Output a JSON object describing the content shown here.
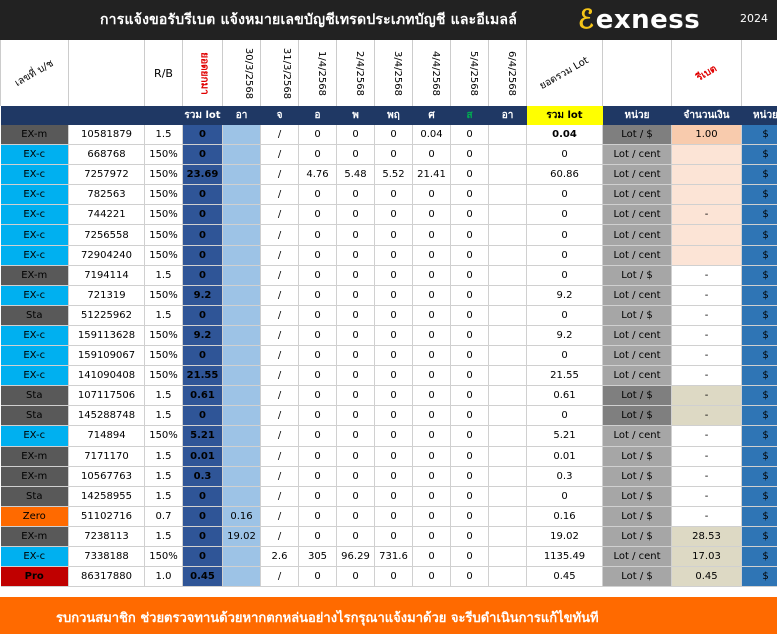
{
  "banner": {
    "title": "การแจ้งขอรับรีเบต  แจ้งหมายเลขบัญชีเทรดประเภทบัญชี และอีเมลล์",
    "brand": "exness",
    "year": "2024"
  },
  "header_top": [
    "เลขที่ บ/ช",
    "",
    "R/B",
    "ยอดยกมา",
    "30/3/2568",
    "31/3/2568",
    "1/4/2568",
    "2/4/2568",
    "3/4/2568",
    "4/4/2568",
    "5/4/2568",
    "6/4/2568",
    "ยอดรวม Lot",
    "",
    "รีเบต",
    ""
  ],
  "header_sub": [
    "",
    "",
    "",
    "รวม lot",
    "อา",
    "จ",
    "อ",
    "พ",
    "พฤ",
    "ศ",
    "ส",
    "อา",
    "รวม lot",
    "หน่วย",
    "จำนวนเงิน",
    "หน่วย"
  ],
  "rows": [
    {
      "type": "EX-m",
      "tc": "t-EXm",
      "acct": "10581879",
      "ac": "acct-black",
      "rb": "1.5",
      "carry": "0",
      "sun1": "",
      "mon": "/",
      "tue": "0",
      "wed": "0",
      "thu": "0",
      "fri": "0.04",
      "sat": "0",
      "sun2": "",
      "lot": "0.04",
      "lotb": true,
      "unit": "Lot / $",
      "uc": "unit-dk",
      "amt": "1.00",
      "amc": "amt-pink",
      "cur": "$"
    },
    {
      "type": "EX-c",
      "tc": "t-EXc",
      "acct": "668768",
      "ac": "acct-blue",
      "rb": "150%",
      "carry": "0",
      "sun1": "",
      "mon": "/",
      "tue": "0",
      "wed": "0",
      "thu": "0",
      "fri": "0",
      "sat": "0",
      "sun2": "",
      "lot": "0",
      "lotb": false,
      "unit": "Lot / cent",
      "uc": "unit-lt",
      "amt": "",
      "amc": "amt-peach",
      "cur": "$"
    },
    {
      "type": "EX-c",
      "tc": "t-EXc",
      "acct": "7257972",
      "ac": "acct-blue",
      "rb": "150%",
      "carry": "23.69",
      "sun1": "",
      "mon": "/",
      "tue": "4.76",
      "wed": "5.48",
      "thu": "5.52",
      "fri": "21.41",
      "sat": "0",
      "sun2": "",
      "lot": "60.86",
      "lotb": false,
      "unit": "Lot / cent",
      "uc": "unit-lt",
      "amt": "",
      "amc": "amt-peach",
      "cur": "$"
    },
    {
      "type": "EX-c",
      "tc": "t-EXc",
      "acct": "782563",
      "ac": "acct-blue",
      "rb": "150%",
      "carry": "0",
      "sun1": "",
      "mon": "/",
      "tue": "0",
      "wed": "0",
      "thu": "0",
      "fri": "0",
      "sat": "0",
      "sun2": "",
      "lot": "0",
      "lotb": false,
      "unit": "Lot / cent",
      "uc": "unit-lt",
      "amt": "",
      "amc": "amt-peach",
      "cur": "$"
    },
    {
      "type": "EX-c",
      "tc": "t-EXc",
      "acct": "744221",
      "ac": "acct-blue",
      "rb": "150%",
      "carry": "0",
      "sun1": "",
      "mon": "/",
      "tue": "0",
      "wed": "0",
      "thu": "0",
      "fri": "0",
      "sat": "0",
      "sun2": "",
      "lot": "0",
      "lotb": false,
      "unit": "Lot / cent",
      "uc": "unit-lt",
      "amt": "-",
      "amc": "amt-peach",
      "cur": "$"
    },
    {
      "type": "EX-c",
      "tc": "t-EXc",
      "acct": "7256558",
      "ac": "acct-blue",
      "rb": "150%",
      "carry": "0",
      "sun1": "",
      "mon": "/",
      "tue": "0",
      "wed": "0",
      "thu": "0",
      "fri": "0",
      "sat": "0",
      "sun2": "",
      "lot": "0",
      "lotb": false,
      "unit": "Lot / cent",
      "uc": "unit-lt",
      "amt": "",
      "amc": "amt-peach",
      "cur": "$"
    },
    {
      "type": "EX-c",
      "tc": "t-EXc",
      "acct": "72904240",
      "ac": "acct-blue",
      "rb": "150%",
      "carry": "0",
      "sun1": "",
      "mon": "/",
      "tue": "0",
      "wed": "0",
      "thu": "0",
      "fri": "0",
      "sat": "0",
      "sun2": "",
      "lot": "0",
      "lotb": false,
      "unit": "Lot / cent",
      "uc": "unit-lt",
      "amt": "",
      "amc": "amt-peach",
      "cur": "$"
    },
    {
      "type": "EX-m",
      "tc": "t-EXm",
      "acct": "7194114",
      "ac": "acct-black",
      "rb": "1.5",
      "carry": "0",
      "sun1": "",
      "mon": "/",
      "tue": "0",
      "wed": "0",
      "thu": "0",
      "fri": "0",
      "sat": "0",
      "sun2": "",
      "lot": "0",
      "lotb": false,
      "unit": "Lot / $",
      "uc": "unit-lt",
      "amt": "-",
      "amc": "",
      "cur": "$"
    },
    {
      "type": "EX-c",
      "tc": "t-EXc",
      "acct": "721319",
      "ac": "acct-black",
      "rb": "150%",
      "carry": "9.2",
      "sun1": "",
      "mon": "/",
      "tue": "0",
      "wed": "0",
      "thu": "0",
      "fri": "0",
      "sat": "0",
      "sun2": "",
      "lot": "9.2",
      "lotb": false,
      "unit": "Lot / cent",
      "uc": "unit-lt",
      "amt": "-",
      "amc": "",
      "cur": "$"
    },
    {
      "type": "Sta",
      "tc": "t-Sta",
      "acct": "51225962",
      "ac": "acct-orange",
      "rb": "1.5",
      "carry": "0",
      "sun1": "",
      "mon": "/",
      "tue": "0",
      "wed": "0",
      "thu": "0",
      "fri": "0",
      "sat": "0",
      "sun2": "",
      "lot": "0",
      "lotb": false,
      "unit": "Lot / $",
      "uc": "unit-lt",
      "amt": "-",
      "amc": "",
      "cur": "$"
    },
    {
      "type": "EX-c",
      "tc": "t-EXc",
      "acct": "159113628",
      "ac": "acct-orange",
      "rb": "150%",
      "carry": "9.2",
      "sun1": "",
      "mon": "/",
      "tue": "0",
      "wed": "0",
      "thu": "0",
      "fri": "0",
      "sat": "0",
      "sun2": "",
      "lot": "9.2",
      "lotb": false,
      "unit": "Lot / cent",
      "uc": "unit-lt",
      "amt": "-",
      "amc": "",
      "cur": "$"
    },
    {
      "type": "EX-c",
      "tc": "t-EXc",
      "acct": "159109067",
      "ac": "acct-orange",
      "rb": "150%",
      "carry": "0",
      "sun1": "",
      "mon": "/",
      "tue": "0",
      "wed": "0",
      "thu": "0",
      "fri": "0",
      "sat": "0",
      "sun2": "",
      "lot": "0",
      "lotb": false,
      "unit": "Lot / cent",
      "uc": "unit-lt",
      "amt": "-",
      "amc": "",
      "cur": "$"
    },
    {
      "type": "EX-c",
      "tc": "t-EXc",
      "acct": "141090408",
      "ac": "acct-orange",
      "rb": "150%",
      "carry": "21.55",
      "sun1": "",
      "mon": "/",
      "tue": "0",
      "wed": "0",
      "thu": "0",
      "fri": "0",
      "sat": "0",
      "sun2": "",
      "lot": "21.55",
      "lotb": false,
      "unit": "Lot / cent",
      "uc": "unit-lt",
      "amt": "-",
      "amc": "",
      "cur": "$"
    },
    {
      "type": "Sta",
      "tc": "t-Sta",
      "acct": "107117506",
      "ac": "acct-blue",
      "rb": "1.5",
      "carry": "0.61",
      "sun1": "",
      "mon": "/",
      "tue": "0",
      "wed": "0",
      "thu": "0",
      "fri": "0",
      "sat": "0",
      "sun2": "",
      "lot": "0.61",
      "lotb": false,
      "unit": "Lot / $",
      "uc": "unit-dk",
      "amt": "-",
      "amc": "amt-tan",
      "cur": "$"
    },
    {
      "type": "Sta",
      "tc": "t-Sta",
      "acct": "145288748",
      "ac": "acct-blue",
      "rb": "1.5",
      "carry": "0",
      "sun1": "",
      "mon": "/",
      "tue": "0",
      "wed": "0",
      "thu": "0",
      "fri": "0",
      "sat": "0",
      "sun2": "",
      "lot": "0",
      "lotb": false,
      "unit": "Lot / $",
      "uc": "unit-dk",
      "amt": "-",
      "amc": "amt-tan",
      "cur": "$"
    },
    {
      "type": "EX-c",
      "tc": "t-EXc",
      "acct": "714894",
      "ac": "acct-black",
      "rb": "150%",
      "carry": "5.21",
      "sun1": "",
      "mon": "/",
      "tue": "0",
      "wed": "0",
      "thu": "0",
      "fri": "0",
      "sat": "0",
      "sun2": "",
      "lot": "5.21",
      "lotb": false,
      "unit": "Lot / cent",
      "uc": "unit-lt",
      "amt": "-",
      "amc": "",
      "cur": "$"
    },
    {
      "type": "EX-m",
      "tc": "t-EXm",
      "acct": "7171170",
      "ac": "acct-black",
      "rb": "1.5",
      "carry": "0.01",
      "sun1": "",
      "mon": "/",
      "tue": "0",
      "wed": "0",
      "thu": "0",
      "fri": "0",
      "sat": "0",
      "sun2": "",
      "lot": "0.01",
      "lotb": false,
      "unit": "Lot / $",
      "uc": "unit-lt",
      "amt": "-",
      "amc": "",
      "cur": "$"
    },
    {
      "type": "EX-m",
      "tc": "t-EXm",
      "acct": "10567763",
      "ac": "acct-blue",
      "rb": "1.5",
      "rbc": "rb-green",
      "carry": "0.3",
      "sun1": "",
      "mon": "/",
      "tue": "0",
      "wed": "0",
      "thu": "0",
      "fri": "0",
      "sat": "0",
      "sun2": "",
      "lot": "0.3",
      "lotb": false,
      "unit": "Lot / $",
      "uc": "unit-lt",
      "amt": "-",
      "amc": "",
      "cur": "$"
    },
    {
      "type": "Sta",
      "tc": "t-Sta",
      "acct": "14258955",
      "ac": "acct-blue",
      "rb": "1.5",
      "rbc": "rb-green",
      "carry": "0",
      "sun1": "",
      "mon": "/",
      "tue": "0",
      "wed": "0",
      "thu": "0",
      "fri": "0",
      "sat": "0",
      "sun2": "",
      "lot": "0",
      "lotb": false,
      "unit": "Lot / $",
      "uc": "unit-lt",
      "amt": "-",
      "amc": "",
      "cur": "$"
    },
    {
      "type": "Zero",
      "tc": "t-Zero",
      "acct": "51102716",
      "ac": "acct-blue",
      "rb": "0.7",
      "rbc": "rb-green",
      "carry": "0",
      "sun1": "0.16",
      "mon": "/",
      "tue": "0",
      "wed": "0",
      "thu": "0",
      "fri": "0",
      "sat": "0",
      "sun2": "",
      "lot": "0.16",
      "lotb": false,
      "unit": "Lot / $",
      "uc": "unit-lt",
      "amt": "-",
      "amc": "",
      "cur": "$"
    },
    {
      "type": "EX-m",
      "tc": "t-EXm",
      "acct": "7238113",
      "ac": "acct-black",
      "rb": "1.5",
      "carry": "0",
      "sun1": "19.02",
      "mon": "/",
      "tue": "0",
      "wed": "0",
      "thu": "0",
      "fri": "0",
      "sat": "0",
      "sun2": "",
      "lot": "19.02",
      "lotb": false,
      "unit": "Lot / $",
      "uc": "unit-lt",
      "amt": "28.53",
      "amc": "amt-tan",
      "cur": "$"
    },
    {
      "type": "EX-c",
      "tc": "t-EXc",
      "acct": "7338188",
      "ac": "acct-black",
      "rb": "150%",
      "carry": "0",
      "sun1": "",
      "mon": "2.6",
      "tue": "305",
      "wed": "96.29",
      "thu": "731.6",
      "fri": "0",
      "sat": "0",
      "sun2": "",
      "lot": "1135.49",
      "lotb": false,
      "unit": "Lot / cent",
      "uc": "unit-lt",
      "amt": "17.03",
      "amc": "amt-tan",
      "cur": "$"
    },
    {
      "type": "Pro",
      "tc": "t-Pro",
      "acct": "86317880",
      "ac": "acct-black",
      "rb": "1.0",
      "carry": "0.45",
      "sun1": "",
      "mon": "/",
      "tue": "0",
      "wed": "0",
      "thu": "0",
      "fri": "0",
      "sat": "0",
      "sun2": "",
      "lot": "0.45",
      "lotb": false,
      "unit": "Lot / $",
      "uc": "unit-lt",
      "amt": "0.45",
      "amc": "amt-tan",
      "cur": "$"
    }
  ],
  "footer": {
    "text": "รบกวนสมาชิก ช่วยตรวจทานด้วยหากตกหล่นอย่างไรกรุณาแจ้งมาด้วย จะรีบดำเนินการแก้ไขทันที"
  }
}
